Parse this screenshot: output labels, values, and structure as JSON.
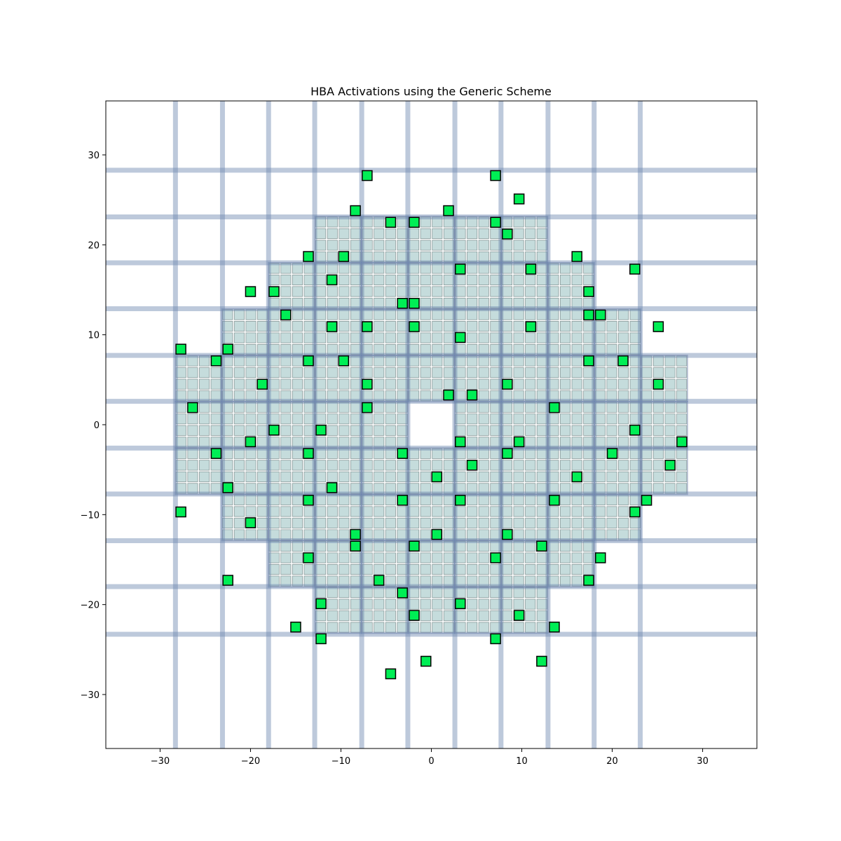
{
  "chart_data": {
    "type": "scatter",
    "title": "HBA Activations using the Generic Scheme",
    "xlabel": "",
    "ylabel": "",
    "xlim": [
      -36,
      36
    ],
    "ylim": [
      -36,
      36
    ],
    "xticks": [
      -30,
      -20,
      -10,
      0,
      10,
      20,
      30
    ],
    "yticks": [
      -30,
      -20,
      -10,
      0,
      10,
      20,
      30
    ],
    "xtick_labels": [
      "−30",
      "−20",
      "−10",
      "0",
      "10",
      "20",
      "30"
    ],
    "ytick_labels": [
      "−30",
      "−20",
      "−10",
      "0",
      "10",
      "20",
      "30"
    ],
    "grid": false,
    "legend": "none",
    "tile_size": 5.15,
    "element_pitch": 1.2875,
    "tiles_per_row": [
      {
        "y_index": 4,
        "x_indices": [
          -2,
          -1,
          0,
          1,
          2
        ]
      },
      {
        "y_index": 3,
        "x_indices": [
          -3,
          -2,
          -1,
          0,
          1,
          2,
          3
        ]
      },
      {
        "y_index": 2,
        "x_indices": [
          -4,
          -3,
          -2,
          -1,
          0,
          1,
          2,
          3,
          4
        ]
      },
      {
        "y_index": 1,
        "x_indices": [
          -5,
          -4,
          -3,
          -2,
          -1,
          0,
          1,
          2,
          3,
          4,
          5
        ]
      },
      {
        "y_index": 0,
        "x_indices": [
          -5,
          -4,
          -3,
          -2,
          -1,
          1,
          2,
          3,
          4,
          5
        ]
      },
      {
        "y_index": -1,
        "x_indices": [
          -5,
          -4,
          -3,
          -2,
          -1,
          0,
          1,
          2,
          3,
          4,
          5
        ]
      },
      {
        "y_index": -2,
        "x_indices": [
          -4,
          -3,
          -2,
          -1,
          0,
          1,
          2,
          3,
          4
        ]
      },
      {
        "y_index": -3,
        "x_indices": [
          -3,
          -2,
          -1,
          0,
          1,
          2,
          3
        ]
      },
      {
        "y_index": -4,
        "x_indices": [
          -2,
          -1,
          0,
          1,
          2
        ]
      }
    ],
    "grid_lines_x": [
      -28.3,
      -23.1,
      -18.0,
      -12.9,
      -7.7,
      -2.6,
      2.6,
      7.7,
      12.9,
      18.0,
      23.1
    ],
    "grid_lines_y": [
      28.3,
      23.1,
      18.0,
      12.9,
      7.7,
      2.6,
      -2.6,
      -7.7,
      -12.9,
      -18.0,
      -23.3
    ],
    "series": [
      {
        "type": "activated_elements",
        "points": [
          [
            -7.1,
            27.7
          ],
          [
            7.1,
            27.7
          ],
          [
            9.7,
            25.1
          ],
          [
            -8.4,
            23.8
          ],
          [
            1.9,
            23.8
          ],
          [
            -4.5,
            22.5
          ],
          [
            -1.9,
            22.5
          ],
          [
            7.1,
            22.5
          ],
          [
            8.4,
            21.2
          ],
          [
            -13.6,
            18.7
          ],
          [
            -9.7,
            18.7
          ],
          [
            16.1,
            18.7
          ],
          [
            3.2,
            17.3
          ],
          [
            11.0,
            17.3
          ],
          [
            22.5,
            17.3
          ],
          [
            -11.0,
            16.1
          ],
          [
            -20.0,
            14.8
          ],
          [
            -17.4,
            14.8
          ],
          [
            17.4,
            14.8
          ],
          [
            -3.2,
            13.5
          ],
          [
            -1.9,
            13.5
          ],
          [
            -16.1,
            12.2
          ],
          [
            17.4,
            12.2
          ],
          [
            18.7,
            12.2
          ],
          [
            -11.0,
            10.9
          ],
          [
            -7.1,
            10.9
          ],
          [
            -1.9,
            10.9
          ],
          [
            11.0,
            10.9
          ],
          [
            25.1,
            10.9
          ],
          [
            3.2,
            9.7
          ],
          [
            -27.7,
            8.4
          ],
          [
            -22.5,
            8.4
          ],
          [
            -23.8,
            7.1
          ],
          [
            -13.6,
            7.1
          ],
          [
            -9.7,
            7.1
          ],
          [
            17.4,
            7.1
          ],
          [
            21.2,
            7.1
          ],
          [
            -18.7,
            4.5
          ],
          [
            -7.1,
            4.5
          ],
          [
            8.4,
            4.5
          ],
          [
            25.1,
            4.5
          ],
          [
            1.9,
            3.3
          ],
          [
            4.5,
            3.3
          ],
          [
            -26.4,
            1.9
          ],
          [
            -7.1,
            1.9
          ],
          [
            13.6,
            1.9
          ],
          [
            -17.4,
            -0.6
          ],
          [
            -12.2,
            -0.6
          ],
          [
            22.5,
            -0.6
          ],
          [
            -20.0,
            -1.9
          ],
          [
            3.2,
            -1.9
          ],
          [
            9.7,
            -1.9
          ],
          [
            27.7,
            -1.9
          ],
          [
            -23.8,
            -3.2
          ],
          [
            -13.6,
            -3.2
          ],
          [
            -3.2,
            -3.2
          ],
          [
            8.4,
            -3.2
          ],
          [
            20.0,
            -3.2
          ],
          [
            4.5,
            -4.5
          ],
          [
            26.4,
            -4.5
          ],
          [
            0.6,
            -5.8
          ],
          [
            16.1,
            -5.8
          ],
          [
            -22.5,
            -7.0
          ],
          [
            -11.0,
            -7.0
          ],
          [
            -13.6,
            -8.4
          ],
          [
            -3.2,
            -8.4
          ],
          [
            3.2,
            -8.4
          ],
          [
            13.6,
            -8.4
          ],
          [
            23.8,
            -8.4
          ],
          [
            -27.7,
            -9.7
          ],
          [
            22.5,
            -9.7
          ],
          [
            -20.0,
            -10.9
          ],
          [
            -8.4,
            -12.2
          ],
          [
            0.6,
            -12.2
          ],
          [
            8.4,
            -12.2
          ],
          [
            -8.4,
            -13.5
          ],
          [
            -1.9,
            -13.5
          ],
          [
            12.2,
            -13.5
          ],
          [
            -13.6,
            -14.8
          ],
          [
            7.1,
            -14.8
          ],
          [
            18.7,
            -14.8
          ],
          [
            -22.5,
            -17.3
          ],
          [
            -5.8,
            -17.3
          ],
          [
            17.4,
            -17.3
          ],
          [
            -3.2,
            -18.7
          ],
          [
            -12.2,
            -19.9
          ],
          [
            3.2,
            -19.9
          ],
          [
            -1.9,
            -21.2
          ],
          [
            9.7,
            -21.2
          ],
          [
            -15.0,
            -22.5
          ],
          [
            13.6,
            -22.5
          ],
          [
            -12.2,
            -23.8
          ],
          [
            7.1,
            -23.8
          ],
          [
            -0.6,
            -26.3
          ],
          [
            12.2,
            -26.3
          ],
          [
            -4.5,
            -27.7
          ]
        ]
      }
    ],
    "colors": {
      "element_fill": "#c5dcdc",
      "element_edge": "#8a9a9a",
      "tile_outline": "#6d7fa8",
      "grid_band": "#6d87b0",
      "activated_fill": "#00ee55",
      "activated_edge": "#000000"
    }
  }
}
